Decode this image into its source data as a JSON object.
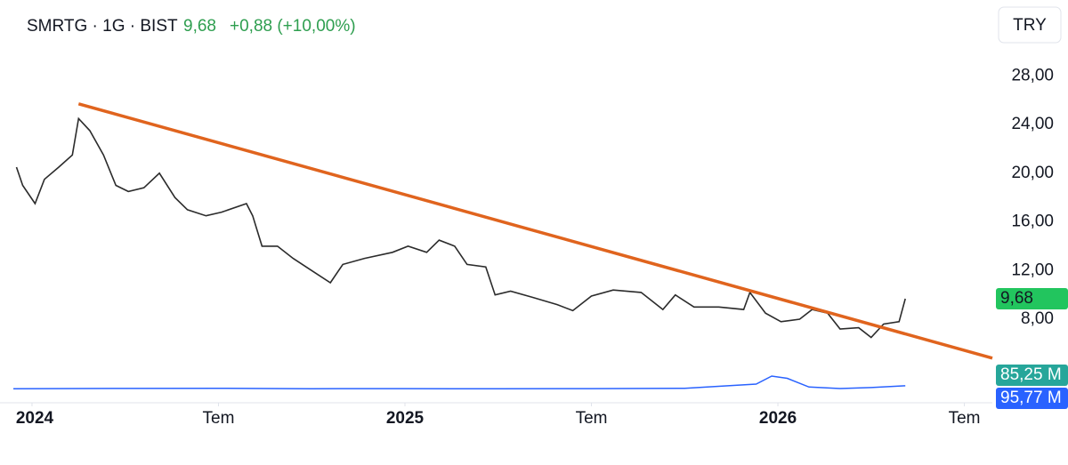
{
  "chart_data": {
    "type": "line",
    "title": "SMRTG · 1G · BIST",
    "last": "9,68",
    "change": "+0,88 (+10,00%)",
    "currency": "TRY",
    "x": [
      -0.5,
      -0.3,
      0.1,
      0.4,
      0.86,
      1.3,
      1.5,
      1.86,
      2.3,
      2.7,
      3.1,
      3.6,
      4.1,
      4.6,
      5.0,
      5.6,
      6.1,
      6.9,
      7.1,
      7.4,
      7.9,
      8.4,
      9.0,
      9.6,
      10.0,
      10.7,
      11.6,
      12.1,
      12.7,
      13.1,
      13.6,
      14.0,
      14.6,
      14.9,
      15.4,
      16.1,
      16.9,
      17.4,
      18.0,
      18.7,
      19.6,
      20.3,
      20.7,
      21.3,
      22.1,
      22.9,
      23.1,
      23.6,
      24.1,
      24.7,
      25.1,
      25.6,
      26.0,
      26.6,
      27.0,
      27.4,
      27.9,
      28.1
    ],
    "series": [
      {
        "name": "SMRTG",
        "color": "#2b2b2b",
        "values": [
          20.5,
          19,
          17.5,
          19.5,
          20.5,
          21.5,
          24.5,
          23.5,
          21.5,
          19,
          18.5,
          18.8,
          20,
          18,
          17,
          16.5,
          16.8,
          17.5,
          16.5,
          14,
          14,
          13,
          12,
          11,
          12.5,
          13,
          13.5,
          14,
          13.5,
          14.5,
          14,
          12.5,
          12.3,
          10,
          10.3,
          9.8,
          9.2,
          8.7,
          9.9,
          10.4,
          10.2,
          8.8,
          10,
          9,
          9,
          8.8,
          10.2,
          8.5,
          7.8,
          8,
          8.8,
          8.5,
          7.2,
          7.3,
          6.5,
          7.6,
          7.8,
          9.68
        ]
      }
    ],
    "trendline": {
      "x": [
        1.5,
        30.9
      ],
      "values": [
        25.7,
        4.8
      ],
      "color": "#e0641e"
    },
    "volume": {
      "x": [
        -0.6,
        3,
        6,
        9,
        12,
        15,
        18,
        21,
        23.3,
        23.8,
        24.3,
        25,
        26,
        27,
        28.1
      ],
      "values": [
        120,
        125,
        128,
        120,
        122,
        118,
        122,
        128,
        200,
        338,
        300,
        150,
        123,
        140,
        170
      ],
      "color": "#2962ff"
    },
    "y2lim": [
      0,
      1000
    ],
    "badges": [
      {
        "text": "9,68",
        "color": "#22c55e"
      },
      {
        "text": "85,25 M",
        "color": "#26a69a"
      },
      {
        "text": "95,77 M",
        "color": "#2962ff"
      }
    ],
    "xlim": [
      -0.6,
      30.9
    ],
    "xticks": [
      {
        "value": 0,
        "label": "2024"
      },
      {
        "value": 6,
        "label": "Tem"
      },
      {
        "value": 12,
        "label": "2025"
      },
      {
        "value": 18,
        "label": "Tem"
      },
      {
        "value": 24,
        "label": "2026"
      },
      {
        "value": 30,
        "label": "Tem"
      }
    ],
    "ylim": [
      1.35,
      34.24
    ],
    "yticks": [
      {
        "value": 8,
        "label": "8,00"
      },
      {
        "value": 12,
        "label": "12,00"
      },
      {
        "value": 16,
        "label": "16,00"
      },
      {
        "value": 20,
        "label": "20,00"
      },
      {
        "value": 24,
        "label": "24,00"
      },
      {
        "value": 28,
        "label": "28,00"
      }
    ]
  }
}
